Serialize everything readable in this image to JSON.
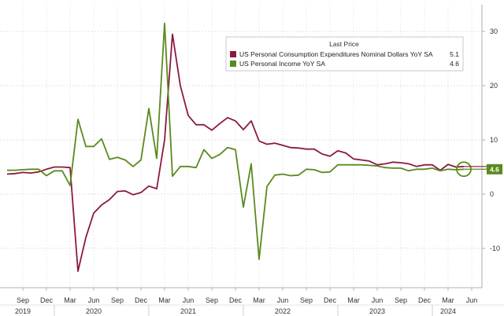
{
  "chart_data": {
    "type": "line",
    "title": "",
    "xlabel": "",
    "ylabel": "",
    "ylim": [
      -15,
      33
    ],
    "yticks": [
      -10,
      0,
      10,
      20,
      30
    ],
    "x_ticks": [
      {
        "date": "2019-09",
        "label": "Sep"
      },
      {
        "date": "2019-12",
        "label": "Dec"
      },
      {
        "date": "2020-03",
        "label": "Mar"
      },
      {
        "date": "2020-06",
        "label": "Jun"
      },
      {
        "date": "2020-09",
        "label": "Sep"
      },
      {
        "date": "2020-12",
        "label": "Dec"
      },
      {
        "date": "2021-03",
        "label": "Mar"
      },
      {
        "date": "2021-06",
        "label": "Jun"
      },
      {
        "date": "2021-09",
        "label": "Sep"
      },
      {
        "date": "2021-12",
        "label": "Dec"
      },
      {
        "date": "2022-03",
        "label": "Mar"
      },
      {
        "date": "2022-06",
        "label": "Jun"
      },
      {
        "date": "2022-09",
        "label": "Sep"
      },
      {
        "date": "2022-12",
        "label": "Dec"
      },
      {
        "date": "2023-03",
        "label": "Mar"
      },
      {
        "date": "2023-06",
        "label": "Jun"
      },
      {
        "date": "2023-09",
        "label": "Sep"
      },
      {
        "date": "2023-12",
        "label": "Dec"
      },
      {
        "date": "2024-03",
        "label": "Mar"
      },
      {
        "date": "2024-06",
        "label": "Jun"
      }
    ],
    "year_labels": [
      {
        "date": "2019-09",
        "label": "2019"
      },
      {
        "date": "2020-06",
        "label": "2020"
      },
      {
        "date": "2021-06",
        "label": "2021"
      },
      {
        "date": "2022-06",
        "label": "2022"
      },
      {
        "date": "2023-06",
        "label": "2023"
      },
      {
        "date": "2024-03",
        "label": "2024"
      }
    ],
    "year_separators": [
      "2020-01",
      "2021-01",
      "2022-01",
      "2023-01",
      "2024-01"
    ],
    "legend": {
      "title": "Last Price",
      "placement": "top-right",
      "entries": [
        {
          "name": "US Personal Consumption Expenditures Nominal Dollars YoY SA",
          "value": "5.1"
        },
        {
          "name": "US Personal Income YoY SA",
          "value": "4.6"
        }
      ]
    },
    "last_value_label": "4.6",
    "series": [
      {
        "name": "US Personal Consumption Expenditures Nominal Dollars YoY SA",
        "color": "#8b1a3f",
        "x": [
          "2019-07",
          "2019-08",
          "2019-09",
          "2019-10",
          "2019-11",
          "2019-12",
          "2020-01",
          "2020-02",
          "2020-03",
          "2020-04",
          "2020-05",
          "2020-06",
          "2020-07",
          "2020-08",
          "2020-09",
          "2020-10",
          "2020-11",
          "2020-12",
          "2021-01",
          "2021-02",
          "2021-03",
          "2021-04",
          "2021-05",
          "2021-06",
          "2021-07",
          "2021-08",
          "2021-09",
          "2021-10",
          "2021-11",
          "2021-12",
          "2022-01",
          "2022-02",
          "2022-03",
          "2022-04",
          "2022-05",
          "2022-06",
          "2022-07",
          "2022-08",
          "2022-09",
          "2022-10",
          "2022-11",
          "2022-12",
          "2023-01",
          "2023-02",
          "2023-03",
          "2023-04",
          "2023-05",
          "2023-06",
          "2023-07",
          "2023-08",
          "2023-09",
          "2023-10",
          "2023-11",
          "2023-12",
          "2024-01",
          "2024-02",
          "2024-03",
          "2024-04",
          "2024-05"
        ],
        "values": [
          3.7,
          3.8,
          4.0,
          3.9,
          4.1,
          4.6,
          5.0,
          5.0,
          4.9,
          -14.2,
          -8.0,
          -3.5,
          -2.0,
          -1.0,
          0.5,
          0.6,
          -0.1,
          0.3,
          1.5,
          1.0,
          10.0,
          29.5,
          20.0,
          14.5,
          12.8,
          12.8,
          11.8,
          13.0,
          14.1,
          13.5,
          11.9,
          13.5,
          9.8,
          9.2,
          9.4,
          9.0,
          8.6,
          8.5,
          8.3,
          8.3,
          7.4,
          7.0,
          8.0,
          7.6,
          6.5,
          6.3,
          6.1,
          5.4,
          5.6,
          5.9,
          5.8,
          5.6,
          5.1,
          5.4,
          5.4,
          4.4,
          5.5,
          5.0,
          5.1
        ]
      },
      {
        "name": "US Personal Income YoY SA",
        "color": "#5a8a1e",
        "x": [
          "2019-07",
          "2019-08",
          "2019-09",
          "2019-10",
          "2019-11",
          "2019-12",
          "2020-01",
          "2020-02",
          "2020-03",
          "2020-04",
          "2020-05",
          "2020-06",
          "2020-07",
          "2020-08",
          "2020-09",
          "2020-10",
          "2020-11",
          "2020-12",
          "2021-01",
          "2021-02",
          "2021-03",
          "2021-04",
          "2021-05",
          "2021-06",
          "2021-07",
          "2021-08",
          "2021-09",
          "2021-10",
          "2021-11",
          "2021-12",
          "2022-01",
          "2022-02",
          "2022-03",
          "2022-04",
          "2022-05",
          "2022-06",
          "2022-07",
          "2022-08",
          "2022-09",
          "2022-10",
          "2022-11",
          "2022-12",
          "2023-01",
          "2023-02",
          "2023-03",
          "2023-04",
          "2023-05",
          "2023-06",
          "2023-07",
          "2023-08",
          "2023-09",
          "2023-10",
          "2023-11",
          "2023-12",
          "2024-01",
          "2024-02",
          "2024-03",
          "2024-04",
          "2024-05"
        ],
        "values": [
          4.4,
          4.4,
          4.5,
          4.6,
          4.6,
          3.4,
          4.3,
          4.3,
          1.6,
          13.8,
          8.8,
          8.8,
          10.2,
          6.4,
          6.8,
          6.3,
          5.1,
          6.3,
          15.8,
          6.6,
          31.5,
          3.3,
          5.1,
          5.1,
          4.9,
          8.2,
          6.6,
          7.3,
          8.6,
          8.2,
          -2.4,
          5.6,
          -12.0,
          1.4,
          3.5,
          3.7,
          3.4,
          3.5,
          4.6,
          4.5,
          4.0,
          4.1,
          5.4,
          5.4,
          5.4,
          5.4,
          5.3,
          5.2,
          4.9,
          4.8,
          4.8,
          4.3,
          4.6,
          4.6,
          4.8,
          4.3,
          4.6,
          4.5,
          4.6
        ]
      }
    ]
  },
  "colors": {
    "pce": "#8b1a3f",
    "income": "#5a8a1e",
    "grid": "#dddddd",
    "last_label_bg": "#5a8a1e"
  }
}
